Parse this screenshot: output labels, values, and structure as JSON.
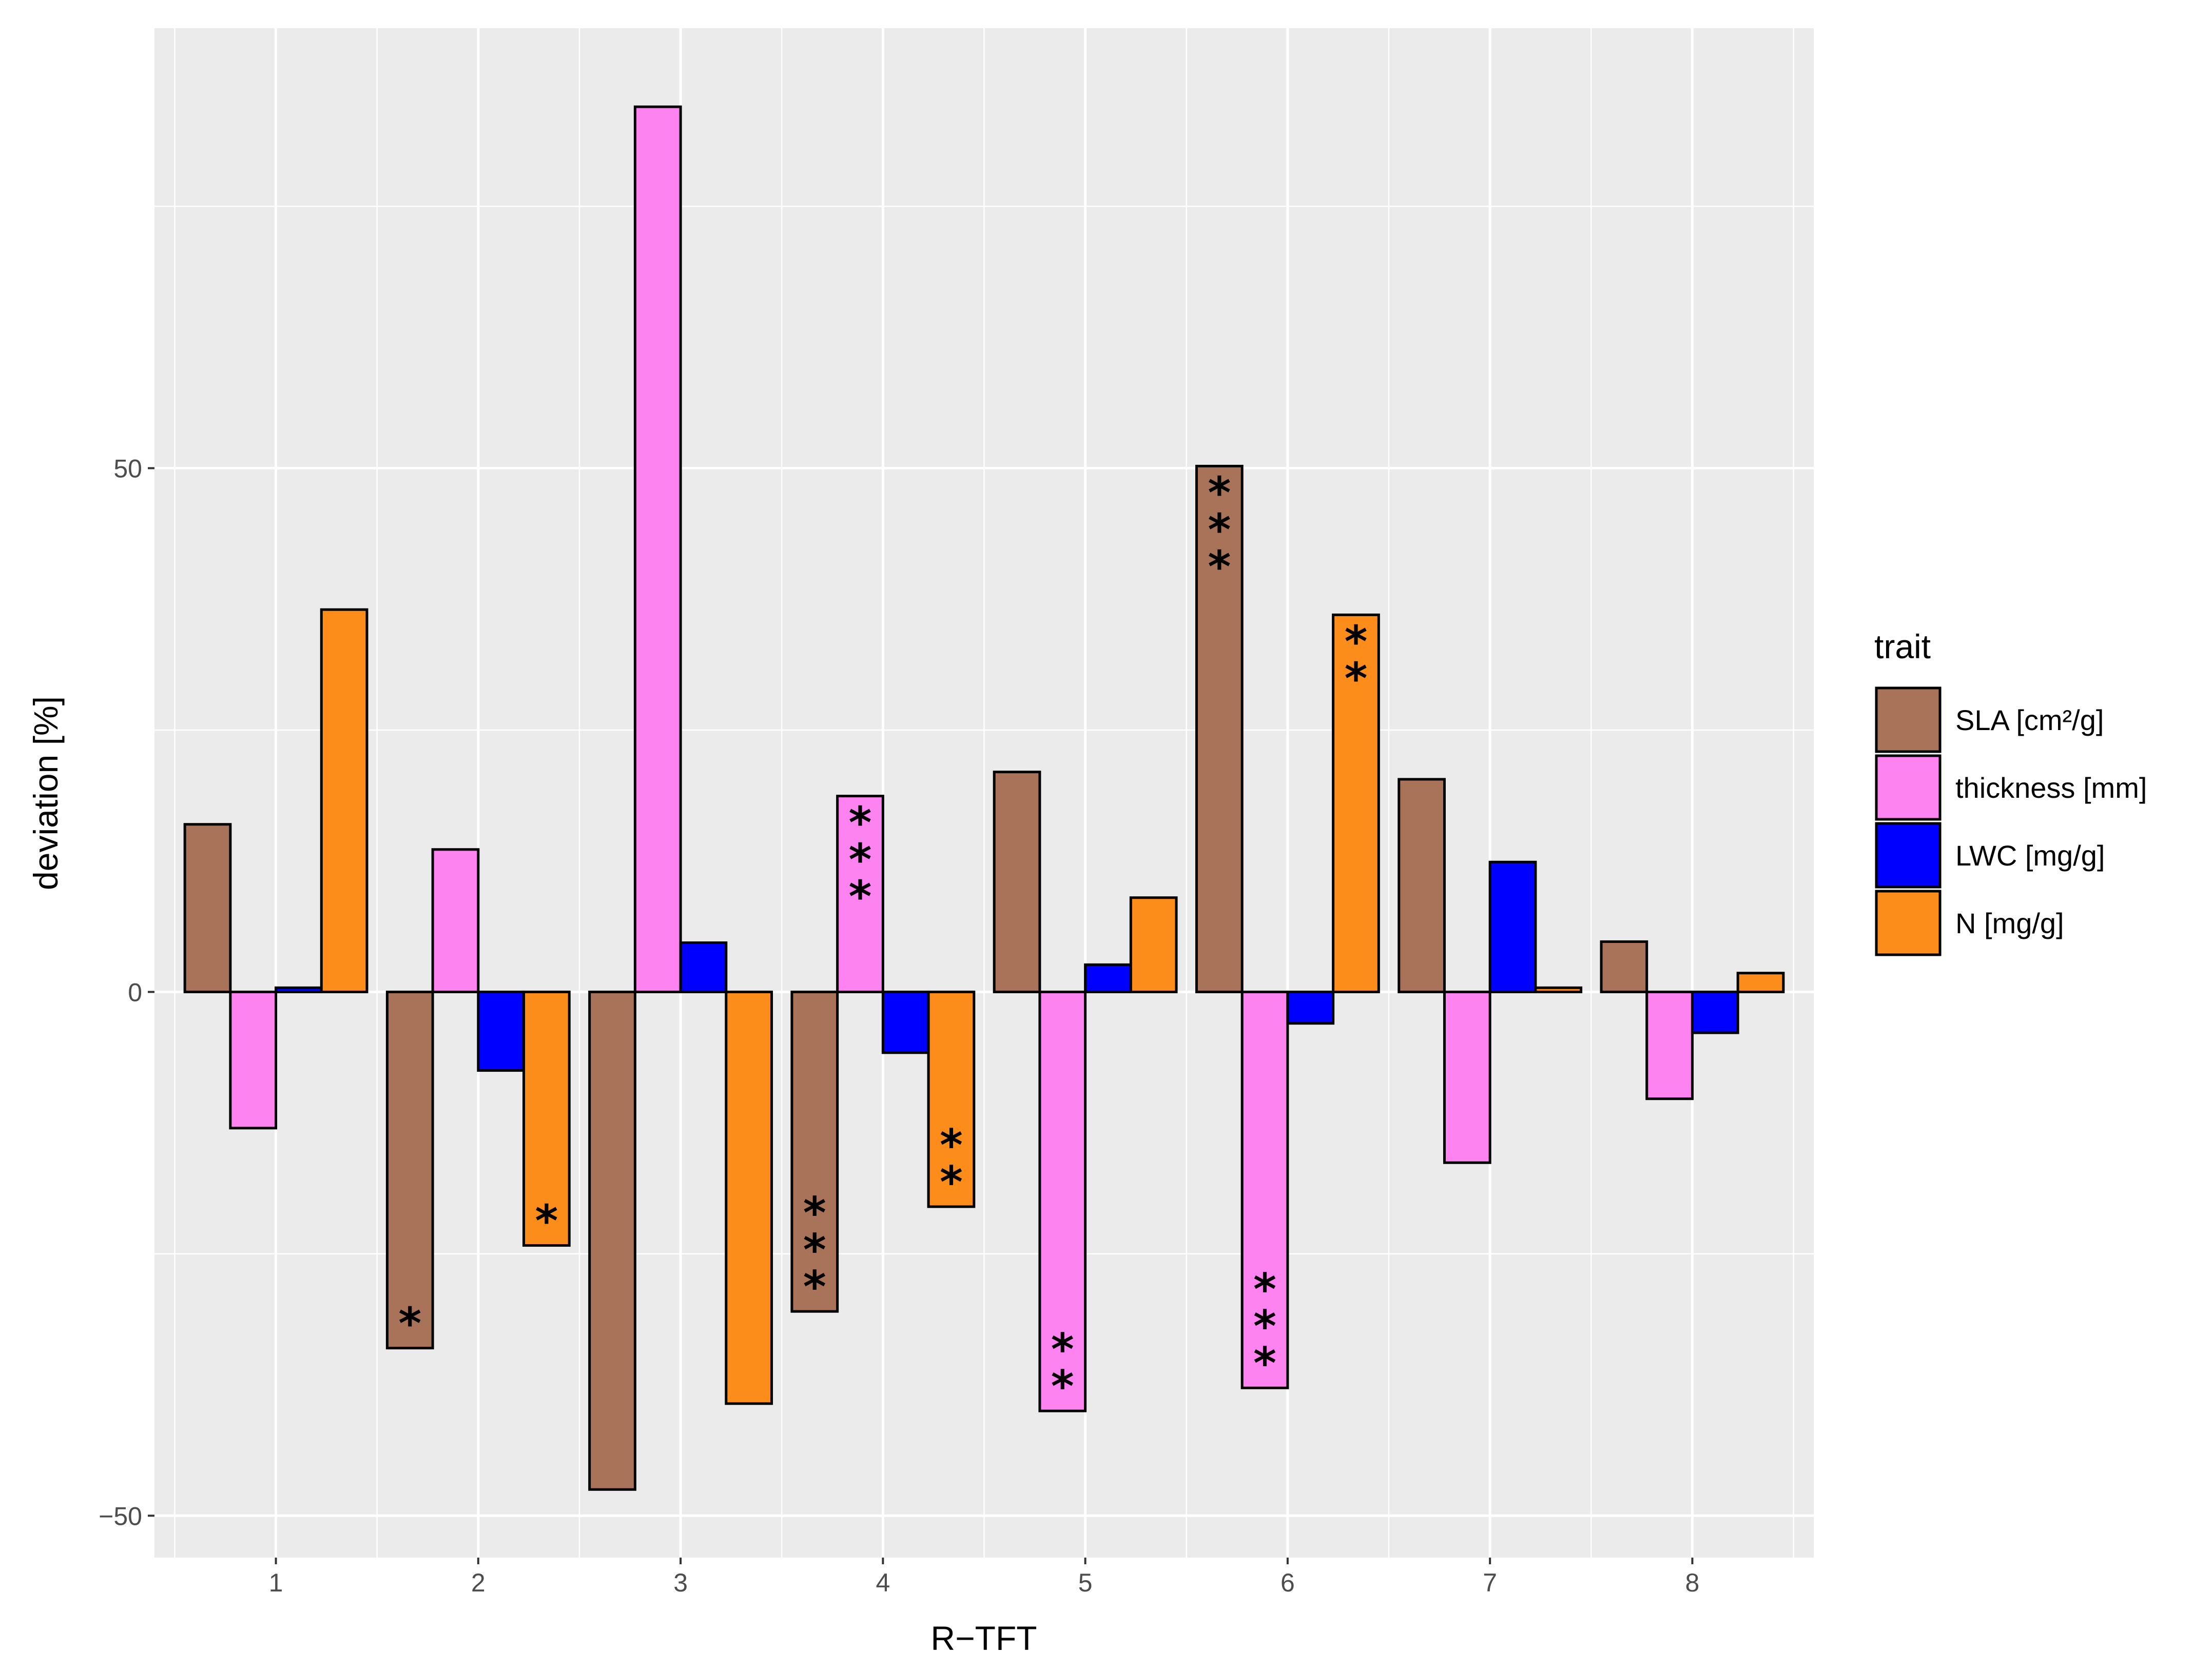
{
  "chart_data": {
    "type": "bar",
    "title": "",
    "xlabel": "R−TFT",
    "ylabel": "deviation [%]",
    "categories": [
      "1",
      "2",
      "3",
      "4",
      "5",
      "6",
      "7",
      "8"
    ],
    "ylim": [
      -54,
      92
    ],
    "yticks": [
      -50,
      0,
      50
    ],
    "ytick_labels": [
      "−50",
      "0",
      "50"
    ],
    "grid": true,
    "legend": {
      "title": "trait",
      "position": "right"
    },
    "series": [
      {
        "name": "SLA [cm²/g]",
        "color": "#a97359",
        "values": [
          16,
          -34,
          -47.5,
          -30.5,
          21,
          50.2,
          20.3,
          4.8
        ],
        "significance": [
          "",
          "*",
          "",
          "***",
          "",
          "***",
          "",
          ""
        ]
      },
      {
        "name": "thickness [mm]",
        "color": "#fd84f0",
        "values": [
          -13,
          13.6,
          84.5,
          18.7,
          -40,
          -37.8,
          -16.3,
          -10.2
        ],
        "significance": [
          "",
          "",
          "",
          "***",
          "**",
          "***",
          "",
          ""
        ]
      },
      {
        "name": "LWC [mg/g]",
        "color": "#0000fe",
        "values": [
          0.4,
          -7.5,
          4.7,
          -5.8,
          2.6,
          -3,
          12.4,
          -3.9
        ],
        "significance": [
          "",
          "",
          "",
          "",
          "",
          "",
          "",
          ""
        ]
      },
      {
        "name": "N [mg/g]",
        "color": "#fd8d1b",
        "values": [
          36.5,
          -24.2,
          -39.3,
          -20.5,
          9,
          36,
          0.4,
          1.8
        ],
        "significance": [
          "",
          "*",
          "",
          "**",
          "",
          "**",
          "",
          ""
        ]
      }
    ]
  }
}
